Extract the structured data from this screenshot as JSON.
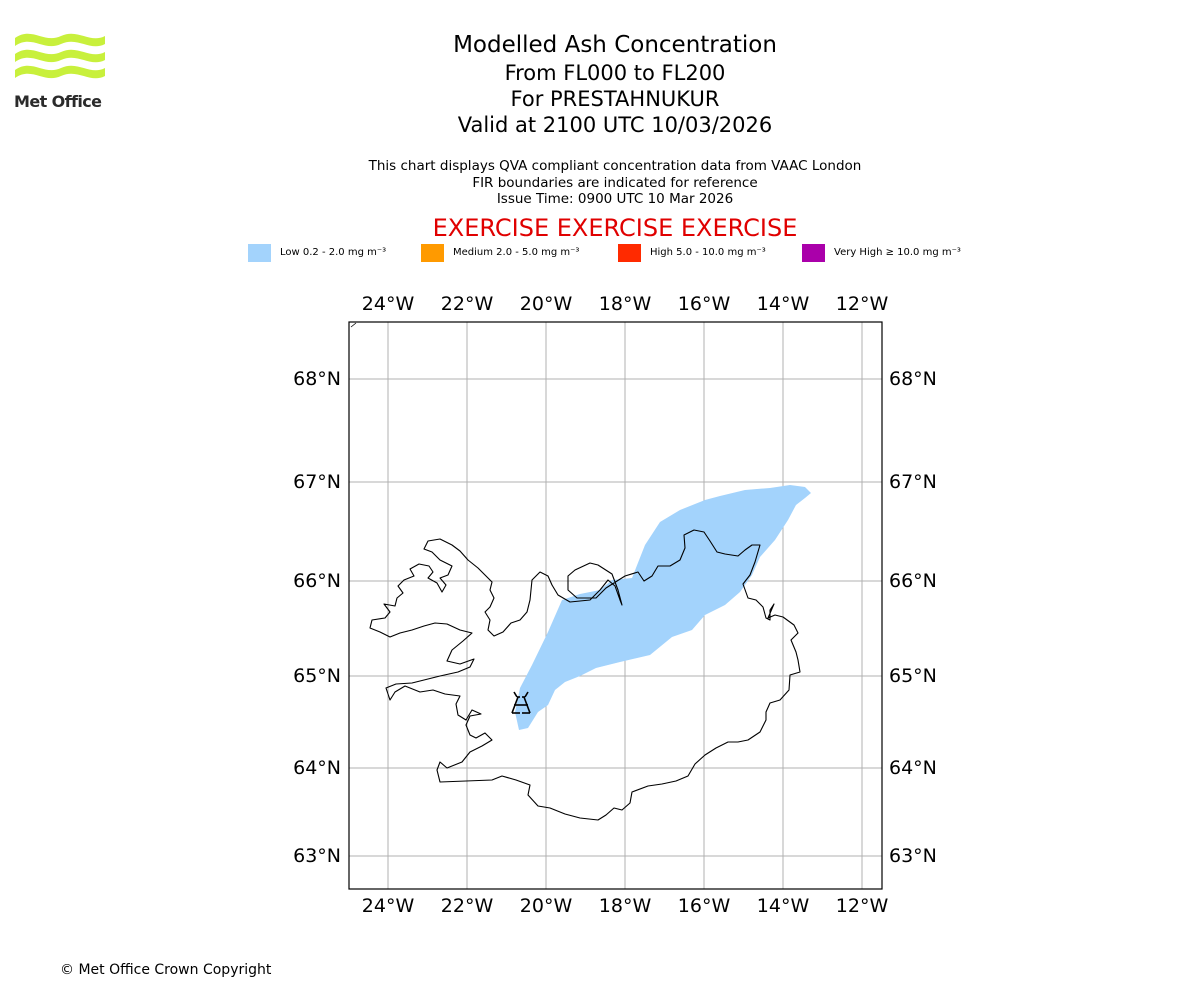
{
  "brand": {
    "name": "Met Office"
  },
  "header": {
    "title": "Modelled Ash Concentration",
    "levels": "From FL000 to FL200",
    "volcano": "For PRESTAHNUKUR",
    "valid": "Valid at 2100 UTC 10/03/2026"
  },
  "info": {
    "line1": "This chart displays QVA compliant concentration data from VAAC London",
    "line2": "FIR boundaries are indicated for reference",
    "line3": "Issue Time: 0900 UTC 10 Mar 2026"
  },
  "exercise_banner": "EXERCISE EXERCISE EXERCISE",
  "legend": [
    {
      "label": "Low 0.2 - 2.0 mg m⁻³",
      "color": "#a3d3fc"
    },
    {
      "label": "Medium 2.0 - 5.0 mg m⁻³",
      "color": "#ff9a00"
    },
    {
      "label": "High 5.0 - 10.0 mg m⁻³",
      "color": "#ff2a00"
    },
    {
      "label": "Very High ≥ 10.0 mg m⁻³",
      "color": "#aa00aa"
    }
  ],
  "map": {
    "lon_ticks": [
      "24°W",
      "22°W",
      "20°W",
      "18°W",
      "16°W",
      "14°W",
      "12°W"
    ],
    "lat_ticks": [
      "68°N",
      "67°N",
      "66°N",
      "65°N",
      "64°N",
      "63°N"
    ],
    "volcano_icon": "volcano-icon",
    "ash_color": "#a3d3fc"
  },
  "footer": {
    "copyright": "© Met Office Crown Copyright"
  }
}
